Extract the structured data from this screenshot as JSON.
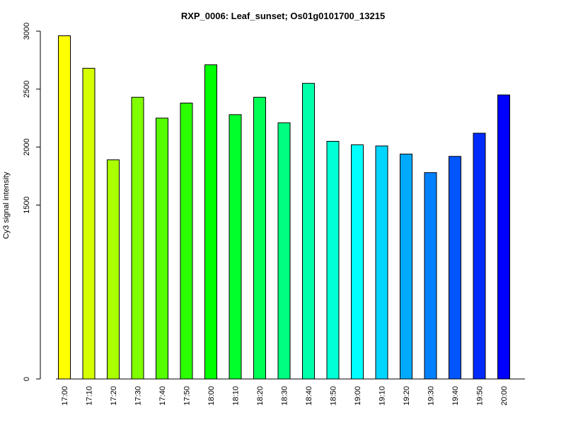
{
  "chart_data": {
    "type": "bar",
    "title": "RXP_0006: Leaf_sunset; Os01g0101700_13215",
    "xlabel": "",
    "ylabel": "Cy3 signal intensity",
    "y_ticks": [
      0,
      1500,
      2000,
      2500,
      3000
    ],
    "ylim": [
      0,
      3000
    ],
    "grid": false,
    "categories": [
      "17:00",
      "17:10",
      "17:20",
      "17:30",
      "17:40",
      "17:50",
      "18:00",
      "18:10",
      "18:20",
      "18:30",
      "18:40",
      "18:50",
      "19:00",
      "19:10",
      "19:20",
      "19:30",
      "19:40",
      "19:50",
      "20:00"
    ],
    "values": [
      2960,
      2680,
      1890,
      2430,
      2250,
      2380,
      2710,
      2280,
      2430,
      2210,
      2550,
      2050,
      2020,
      2010,
      1940,
      1780,
      1920,
      2120,
      2450
    ],
    "colors": [
      "#ffff00",
      "#d5ff00",
      "#aaff00",
      "#80ff00",
      "#55ff00",
      "#2bff00",
      "#00ff00",
      "#00ff2b",
      "#00ff55",
      "#00ff80",
      "#00ffaa",
      "#00ffd5",
      "#00ffff",
      "#00d5ff",
      "#00aaff",
      "#0080ff",
      "#0055ff",
      "#002bff",
      "#0000ff"
    ]
  }
}
